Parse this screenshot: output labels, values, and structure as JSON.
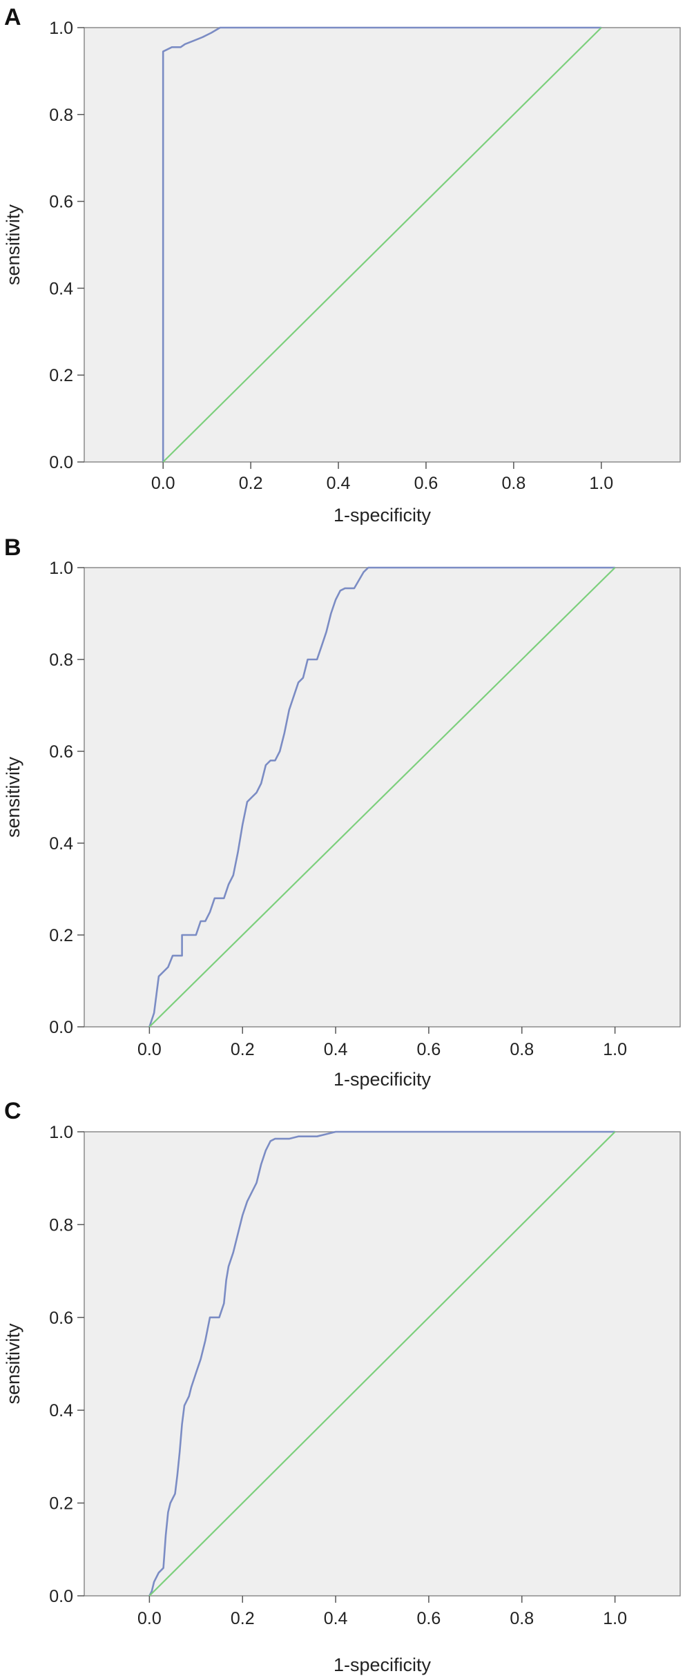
{
  "chart_data": [
    {
      "type": "line",
      "panel_label": "A",
      "title": "",
      "xlabel": "1-specificity",
      "ylabel": "sensitivity",
      "xlim": [
        -0.18,
        1.18
      ],
      "ylim": [
        0.0,
        1.0
      ],
      "xticks": [
        "0.0",
        "0.2",
        "0.4",
        "0.6",
        "0.8",
        "1.0"
      ],
      "yticks": [
        "0.0",
        "0.2",
        "0.4",
        "0.6",
        "0.8",
        "1.0"
      ],
      "grid": false,
      "colors": {
        "roc": "#7b8cc4",
        "reference": "#7ccf7c",
        "plot_bg": "#efefef"
      },
      "series": [
        {
          "name": "",
          "role": "roc",
          "x": [
            0.0,
            0.0,
            0.02,
            0.04,
            0.05,
            0.07,
            0.09,
            0.11,
            0.13,
            1.0
          ],
          "y": [
            0.0,
            0.945,
            0.955,
            0.955,
            0.962,
            0.97,
            0.978,
            0.988,
            1.0,
            1.0
          ]
        },
        {
          "name": "",
          "role": "reference",
          "x": [
            0.0,
            1.0
          ],
          "y": [
            0.0,
            1.0
          ]
        }
      ]
    },
    {
      "type": "line",
      "panel_label": "B",
      "title": "",
      "xlabel": "1-specificity",
      "ylabel": "sensitivity",
      "xlim": [
        -0.14,
        1.14
      ],
      "ylim": [
        0.0,
        1.0
      ],
      "xticks": [
        "0.0",
        "0.2",
        "0.4",
        "0.6",
        "0.8",
        "1.0"
      ],
      "yticks": [
        "0.0",
        "0.2",
        "0.4",
        "0.6",
        "0.8",
        "1.0"
      ],
      "grid": false,
      "colors": {
        "roc": "#7b8cc4",
        "reference": "#7ccf7c",
        "plot_bg": "#efefef"
      },
      "series": [
        {
          "name": "",
          "role": "roc",
          "x": [
            0.0,
            0.01,
            0.015,
            0.02,
            0.04,
            0.05,
            0.07,
            0.07,
            0.1,
            0.11,
            0.12,
            0.13,
            0.14,
            0.15,
            0.16,
            0.17,
            0.18,
            0.19,
            0.2,
            0.21,
            0.22,
            0.23,
            0.24,
            0.25,
            0.26,
            0.27,
            0.28,
            0.29,
            0.3,
            0.31,
            0.32,
            0.33,
            0.34,
            0.35,
            0.36,
            0.37,
            0.38,
            0.39,
            0.4,
            0.41,
            0.42,
            0.44,
            0.44,
            0.46,
            0.47,
            1.0
          ],
          "y": [
            0.0,
            0.03,
            0.07,
            0.11,
            0.13,
            0.155,
            0.155,
            0.2,
            0.2,
            0.23,
            0.23,
            0.25,
            0.28,
            0.28,
            0.28,
            0.31,
            0.33,
            0.38,
            0.44,
            0.49,
            0.5,
            0.51,
            0.53,
            0.57,
            0.58,
            0.58,
            0.6,
            0.64,
            0.69,
            0.72,
            0.75,
            0.76,
            0.8,
            0.8,
            0.8,
            0.83,
            0.86,
            0.9,
            0.93,
            0.95,
            0.955,
            0.955,
            0.955,
            0.99,
            1.0,
            1.0
          ]
        },
        {
          "name": "",
          "role": "reference",
          "x": [
            0.0,
            1.0
          ],
          "y": [
            0.0,
            1.0
          ]
        }
      ]
    },
    {
      "type": "line",
      "panel_label": "C",
      "title": "",
      "xlabel": "1-specificity",
      "ylabel": "sensitivity",
      "xlim": [
        -0.14,
        1.14
      ],
      "ylim": [
        0.0,
        1.0
      ],
      "xticks": [
        "0.0",
        "0.2",
        "0.4",
        "0.6",
        "0.8",
        "1.0"
      ],
      "yticks": [
        "0.0",
        "0.2",
        "0.4",
        "0.6",
        "0.8",
        "1.0"
      ],
      "grid": false,
      "colors": {
        "roc": "#7b8cc4",
        "reference": "#7ccf7c",
        "plot_bg": "#efefef"
      },
      "series": [
        {
          "name": "",
          "role": "roc",
          "x": [
            0.0,
            0.005,
            0.01,
            0.02,
            0.03,
            0.035,
            0.04,
            0.045,
            0.05,
            0.055,
            0.06,
            0.065,
            0.07,
            0.075,
            0.08,
            0.085,
            0.09,
            0.1,
            0.11,
            0.12,
            0.13,
            0.14,
            0.15,
            0.16,
            0.165,
            0.17,
            0.18,
            0.19,
            0.2,
            0.21,
            0.22,
            0.23,
            0.24,
            0.25,
            0.26,
            0.27,
            0.3,
            0.32,
            0.36,
            0.38,
            0.4,
            1.0
          ],
          "y": [
            0.0,
            0.01,
            0.03,
            0.05,
            0.06,
            0.13,
            0.18,
            0.2,
            0.21,
            0.22,
            0.26,
            0.31,
            0.37,
            0.41,
            0.42,
            0.43,
            0.45,
            0.48,
            0.51,
            0.55,
            0.6,
            0.6,
            0.6,
            0.63,
            0.68,
            0.71,
            0.74,
            0.78,
            0.82,
            0.85,
            0.87,
            0.89,
            0.93,
            0.96,
            0.98,
            0.985,
            0.985,
            0.99,
            0.99,
            0.995,
            1.0,
            1.0
          ]
        },
        {
          "name": "",
          "role": "reference",
          "x": [
            0.0,
            1.0
          ],
          "y": [
            0.0,
            1.0
          ]
        }
      ]
    }
  ]
}
